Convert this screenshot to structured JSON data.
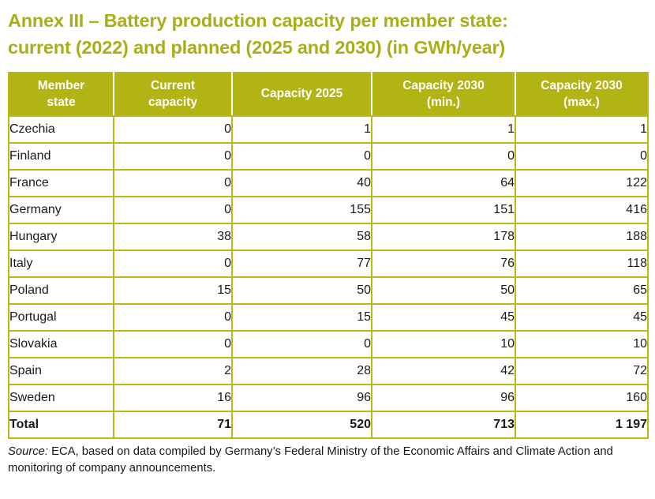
{
  "page": {
    "title": "Annex III – Battery production capacity per member state:\ncurrent (2022) and planned (2025 and 2030) (in GWh/year)"
  },
  "table": {
    "columns": [
      "Member\nstate",
      "Current\ncapacity",
      "Capacity 2025",
      "Capacity 2030\n(min.)",
      "Capacity 2030\n(max.)"
    ],
    "rows": [
      {
        "state": "Czechia",
        "values": [
          "0",
          "1",
          "1",
          "1"
        ]
      },
      {
        "state": "Finland",
        "values": [
          "0",
          "0",
          "0",
          "0"
        ]
      },
      {
        "state": "France",
        "values": [
          "0",
          "40",
          "64",
          "122"
        ]
      },
      {
        "state": "Germany",
        "values": [
          "0",
          "155",
          "151",
          "416"
        ]
      },
      {
        "state": "Hungary",
        "values": [
          "38",
          "58",
          "178",
          "188"
        ]
      },
      {
        "state": "Italy",
        "values": [
          "0",
          "77",
          "76",
          "118"
        ]
      },
      {
        "state": "Poland",
        "values": [
          "15",
          "50",
          "50",
          "65"
        ]
      },
      {
        "state": "Portugal",
        "values": [
          "0",
          "15",
          "45",
          "45"
        ]
      },
      {
        "state": "Slovakia",
        "values": [
          "0",
          "0",
          "10",
          "10"
        ]
      },
      {
        "state": "Spain",
        "values": [
          "2",
          "28",
          "42",
          "72"
        ]
      },
      {
        "state": "Sweden",
        "values": [
          "16",
          "96",
          "96",
          "160"
        ]
      },
      {
        "state": "Total",
        "values": [
          "71",
          "520",
          "713",
          "1 197"
        ],
        "is_total": true
      }
    ]
  },
  "source_note": {
    "label": "Source:",
    "text": " ECA, based on data compiled by Germany’s Federal Ministry of the Economic Affairs and Climate Action and monitoring of company announcements."
  },
  "colors": {
    "title_accent": "#a9ae19",
    "header_bg": "#b1b413",
    "table_border": "#b9ba17",
    "header_text": "#ffffff",
    "body_text": "#1a1a1a"
  }
}
